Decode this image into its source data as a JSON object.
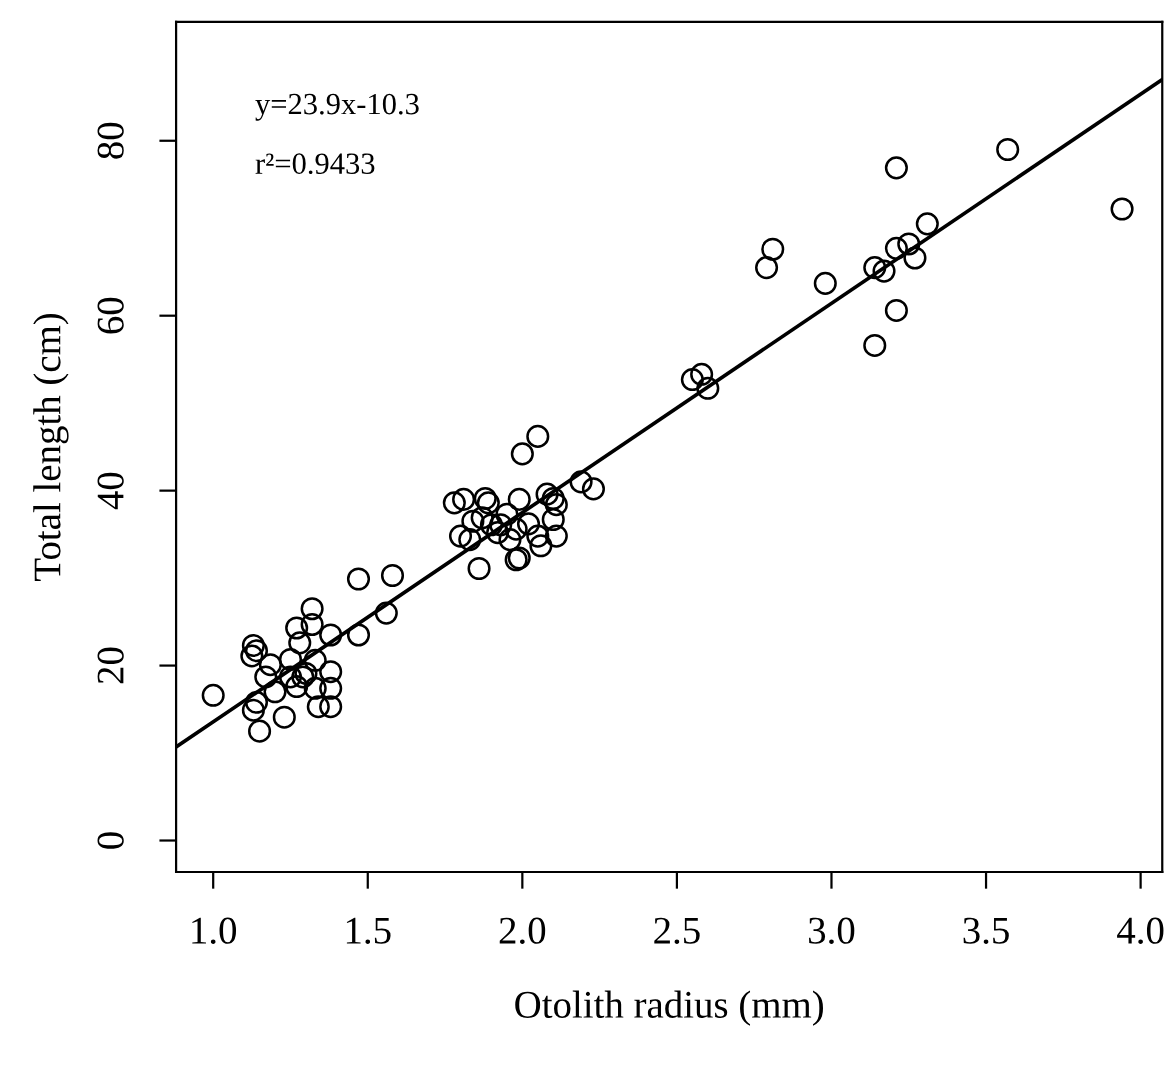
{
  "chart_data": {
    "type": "scatter",
    "xlabel": "Otolith radius (mm)",
    "ylabel": "Total length (cm)",
    "annotations": [
      "y=23.9x-10.3",
      "r²=0.9433"
    ],
    "xlim": [
      0.88,
      4.07
    ],
    "ylim": [
      -3.6,
      93.6
    ],
    "xticks": [
      {
        "value": 1,
        "label": "1.0"
      },
      {
        "value": 1.5,
        "label": "1.5"
      },
      {
        "value": 2,
        "label": "2.0"
      },
      {
        "value": 2.5,
        "label": "2.5"
      },
      {
        "value": 3,
        "label": "3.0"
      },
      {
        "value": 3.5,
        "label": "3.5"
      },
      {
        "value": 4,
        "label": "4.0"
      }
    ],
    "yticks": [
      0,
      20,
      40,
      60,
      80
    ],
    "grid": false,
    "marker": "circle",
    "series": [
      {
        "color": "#000000",
        "x": [
          1.0,
          1.13,
          1.125,
          1.14,
          1.14,
          1.13,
          1.15,
          1.17,
          1.185,
          1.2,
          1.23,
          1.25,
          1.25,
          1.27,
          1.28,
          1.27,
          1.29,
          1.3,
          1.32,
          1.32,
          1.33,
          1.33,
          1.34,
          1.38,
          1.38,
          1.38,
          1.38,
          1.47,
          1.47,
          1.56,
          1.58,
          1.78,
          1.81,
          1.8,
          1.83,
          1.84,
          1.86,
          1.88,
          1.89,
          1.87,
          1.9,
          1.92,
          1.93,
          1.95,
          1.96,
          1.98,
          1.99,
          1.98,
          1.99,
          2.0,
          2.05,
          2.02,
          2.05,
          2.06,
          2.08,
          2.1,
          2.11,
          2.1,
          2.11,
          2.19,
          2.23,
          2.55,
          2.58,
          2.6,
          2.79,
          2.81,
          2.98,
          3.14,
          3.14,
          3.17,
          3.21,
          3.21,
          3.21,
          3.25,
          3.27,
          3.31,
          3.57,
          3.94
        ],
        "values": [
          16.6,
          22.3,
          21.1,
          21.7,
          15.8,
          14.9,
          12.5,
          18.7,
          20.1,
          17.0,
          14.1,
          20.7,
          18.7,
          24.3,
          22.6,
          17.6,
          18.7,
          19.1,
          26.5,
          24.7,
          20.6,
          17.4,
          15.3,
          15.3,
          17.4,
          19.3,
          23.5,
          23.5,
          29.9,
          26.0,
          30.3,
          38.6,
          39.0,
          34.8,
          34.4,
          36.5,
          31.1,
          39.1,
          38.6,
          36.9,
          36.1,
          35.2,
          36.1,
          37.3,
          34.4,
          32.1,
          32.3,
          35.6,
          39.0,
          44.2,
          46.2,
          36.2,
          34.8,
          33.7,
          39.6,
          39.1,
          38.4,
          36.7,
          34.8,
          41.0,
          40.2,
          52.7,
          53.3,
          51.7,
          65.5,
          67.6,
          63.7,
          56.6,
          65.5,
          65.1,
          60.6,
          67.7,
          76.9,
          68.2,
          66.6,
          70.5,
          79.0,
          72.2
        ]
      },
      {
        "type": "line",
        "color": "#000000",
        "marker": "none",
        "line_style": "solid",
        "x": [
          0.88,
          4.07
        ],
        "values": [
          10.7,
          87.0
        ]
      }
    ]
  }
}
